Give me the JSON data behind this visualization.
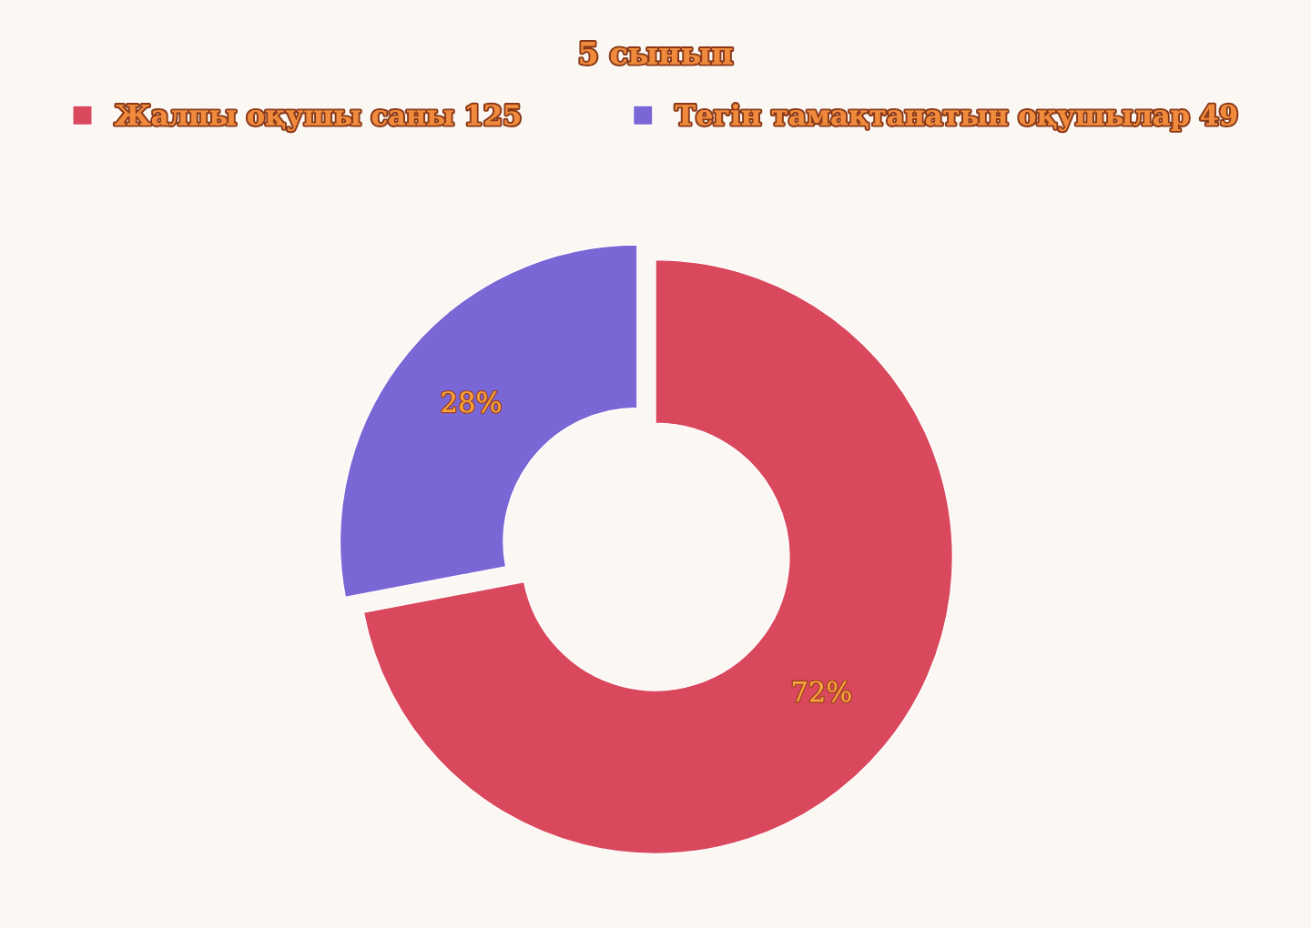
{
  "chart_data": {
    "type": "donut",
    "title": "5 сынып",
    "categories": [
      "Жалпы оқушы саны 125",
      "Тегін тамақтанатын оқушылар 49"
    ],
    "values": [
      72,
      28
    ],
    "colors": [
      "#d9485c",
      "#7a66d4"
    ],
    "value_labels": [
      "72%",
      "28%"
    ],
    "legend": "top"
  }
}
